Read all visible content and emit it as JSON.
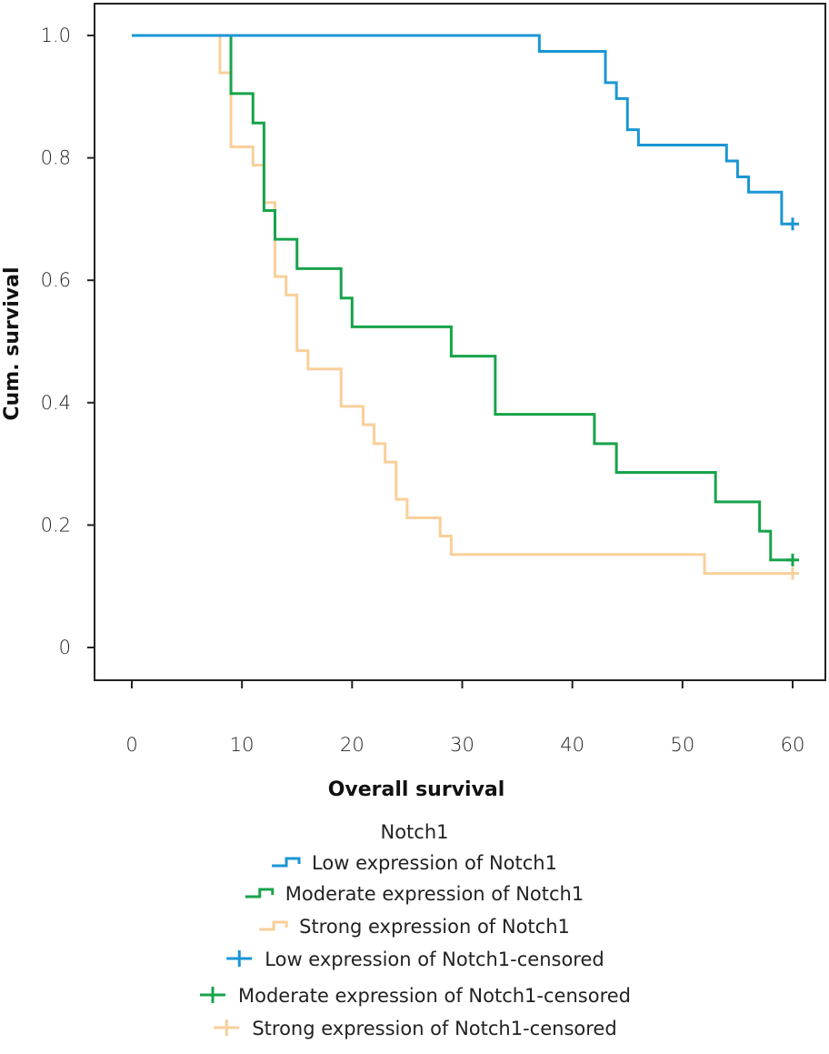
{
  "chart_data": {
    "type": "line",
    "subtype": "kaplan-meier-step",
    "title": "",
    "xlabel": "Overall survival",
    "ylabel": "Cum. survival",
    "xlim": [
      0,
      60
    ],
    "ylim": [
      0,
      1.0
    ],
    "xticks": [
      0,
      10,
      20,
      30,
      40,
      50,
      60
    ],
    "xtick_labels": [
      "0",
      "10",
      "20",
      "30",
      "40",
      "50",
      "60"
    ],
    "yticks": [
      0,
      0.2,
      0.4,
      0.6,
      0.8,
      1.0
    ],
    "ytick_labels": [
      "0",
      "0.2",
      "0.4",
      "0.6",
      "0.8",
      "1.0"
    ],
    "grid": false,
    "legend": {
      "title": "Notch1",
      "placement": "bottom-center",
      "entries": [
        {
          "label": "Low expression of Notch1",
          "marker": "step",
          "series": 0
        },
        {
          "label": "Moderate expression of Notch1",
          "marker": "step",
          "series": 1
        },
        {
          "label": "Strong expression of Notch1",
          "marker": "step",
          "series": 2
        },
        {
          "label": "Low expression of Notch1-censored",
          "marker": "plus",
          "series": 0
        },
        {
          "label": "Moderate expression of Notch1-censored",
          "marker": "plus",
          "series": 1
        },
        {
          "label": "Strong expression of Notch1-censored",
          "marker": "plus",
          "series": 2
        }
      ]
    },
    "series": [
      {
        "name": "Low expression of Notch1",
        "color": "#1a96d4",
        "start_x": 0,
        "steps": [
          [
            0,
            1.0
          ],
          [
            37,
            0.974
          ],
          [
            43,
            0.923
          ],
          [
            44,
            0.897
          ],
          [
            45,
            0.846
          ],
          [
            46,
            0.821
          ],
          [
            54,
            0.795
          ],
          [
            55,
            0.769
          ],
          [
            56,
            0.744
          ],
          [
            59,
            0.692
          ]
        ],
        "end_x": 60,
        "censored": [
          [
            60,
            0.692
          ]
        ]
      },
      {
        "name": "Moderate expression of Notch1",
        "color": "#17a34a",
        "start_x": 9,
        "steps": [
          [
            9,
            1.0
          ],
          [
            9,
            0.905
          ],
          [
            11,
            0.857
          ],
          [
            12,
            0.714
          ],
          [
            13,
            0.667
          ],
          [
            15,
            0.619
          ],
          [
            19,
            0.571
          ],
          [
            20,
            0.524
          ],
          [
            29,
            0.476
          ],
          [
            33,
            0.381
          ],
          [
            42,
            0.333
          ],
          [
            44,
            0.286
          ],
          [
            53,
            0.238
          ],
          [
            57,
            0.19
          ],
          [
            58,
            0.143
          ]
        ],
        "end_x": 60,
        "censored": [
          [
            60,
            0.143
          ]
        ]
      },
      {
        "name": "Strong expression of Notch1",
        "color": "#f9cf9a",
        "start_x": 8,
        "steps": [
          [
            8,
            1.0
          ],
          [
            8,
            0.939
          ],
          [
            9,
            0.818
          ],
          [
            11,
            0.788
          ],
          [
            12,
            0.727
          ],
          [
            13,
            0.606
          ],
          [
            14,
            0.576
          ],
          [
            15,
            0.485
          ],
          [
            16,
            0.455
          ],
          [
            19,
            0.394
          ],
          [
            21,
            0.364
          ],
          [
            22,
            0.333
          ],
          [
            23,
            0.303
          ],
          [
            24,
            0.242
          ],
          [
            25,
            0.212
          ],
          [
            28,
            0.182
          ],
          [
            29,
            0.152
          ],
          [
            52,
            0.121
          ]
        ],
        "end_x": 60,
        "censored": [
          [
            60,
            0.121
          ]
        ]
      }
    ]
  }
}
